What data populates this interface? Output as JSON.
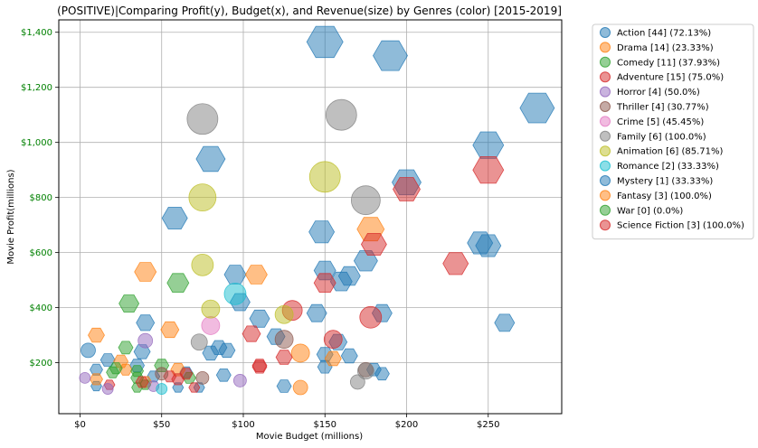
{
  "chart_data": {
    "type": "scatter",
    "title": "(POSITIVE)|Comparing Profit(y), Budget(x), and Revenue(size) by Genres (color) [2015-2019]",
    "xlabel": "Movie Budget (millions)",
    "ylabel": "Movie Profit(millions)",
    "xlim": [
      -13,
      295
    ],
    "ylim": [
      15,
      1445
    ],
    "x_ticks": [
      0,
      50,
      100,
      150,
      200,
      250
    ],
    "x_tick_labels": [
      "$0",
      "$50",
      "$100",
      "$150",
      "$200",
      "$250"
    ],
    "y_ticks": [
      200,
      400,
      600,
      800,
      1000,
      1200,
      1400
    ],
    "y_tick_labels": [
      "$200",
      "$400",
      "$600",
      "$800",
      "$1,000",
      "$1,200",
      "$1,400"
    ],
    "y_tick_color": "#008000",
    "grid": true,
    "legend_position": "outside-right",
    "colors": {
      "blue": "#1f77b4",
      "orange": "#ff7f0e",
      "green": "#2ca02c",
      "red": "#d62728",
      "purple": "#9467bd",
      "brown": "#8c564b",
      "pink": "#e377c2",
      "gray": "#7f7f7f",
      "olive": "#bcbd22",
      "cyan": "#17becf"
    },
    "legend": [
      {
        "label": "Action [44] (72.13%)",
        "color": "#1f77b4"
      },
      {
        "label": "Drama [14] (23.33%)",
        "color": "#ff7f0e"
      },
      {
        "label": "Comedy [11] (37.93%)",
        "color": "#2ca02c"
      },
      {
        "label": "Adventure [15] (75.0%)",
        "color": "#d62728"
      },
      {
        "label": "Horror [4] (50.0%)",
        "color": "#9467bd"
      },
      {
        "label": "Thriller [4] (30.77%)",
        "color": "#8c564b"
      },
      {
        "label": "Crime [5] (45.45%)",
        "color": "#e377c2"
      },
      {
        "label": "Family [6] (100.0%)",
        "color": "#7f7f7f"
      },
      {
        "label": "Animation [6] (85.71%)",
        "color": "#bcbd22"
      },
      {
        "label": "Romance [2] (33.33%)",
        "color": "#17becf"
      },
      {
        "label": "Mystery [1] (33.33%)",
        "color": "#1f77b4"
      },
      {
        "label": "Fantasy [3] (100.0%)",
        "color": "#ff7f0e"
      },
      {
        "label": "War [0] (0.0%)",
        "color": "#2ca02c"
      },
      {
        "label": "Science Fiction [3] (100.0%)",
        "color": "#d62728"
      }
    ],
    "points": [
      {
        "x": 150,
        "y": 1365,
        "s": 20,
        "c": "#1f77b4",
        "m": "hex"
      },
      {
        "x": 190,
        "y": 1315,
        "s": 19,
        "c": "#1f77b4",
        "m": "hex"
      },
      {
        "x": 280,
        "y": 1125,
        "s": 19,
        "c": "#1f77b4",
        "m": "hex"
      },
      {
        "x": 250,
        "y": 990,
        "s": 17,
        "c": "#1f77b4",
        "m": "hex"
      },
      {
        "x": 80,
        "y": 940,
        "s": 16,
        "c": "#1f77b4",
        "m": "hex"
      },
      {
        "x": 200,
        "y": 855,
        "s": 16,
        "c": "#1f77b4",
        "m": "hex"
      },
      {
        "x": 58,
        "y": 725,
        "s": 14,
        "c": "#1f77b4",
        "m": "hex"
      },
      {
        "x": 148,
        "y": 675,
        "s": 14,
        "c": "#1f77b4",
        "m": "hex"
      },
      {
        "x": 245,
        "y": 635,
        "s": 14,
        "c": "#1f77b4",
        "m": "hex"
      },
      {
        "x": 250,
        "y": 625,
        "s": 14,
        "c": "#1f77b4",
        "m": "hex"
      },
      {
        "x": 175,
        "y": 570,
        "s": 13,
        "c": "#1f77b4",
        "m": "hex"
      },
      {
        "x": 150,
        "y": 535,
        "s": 12,
        "c": "#1f77b4",
        "m": "hex"
      },
      {
        "x": 95,
        "y": 520,
        "s": 12,
        "c": "#1f77b4",
        "m": "hex"
      },
      {
        "x": 165,
        "y": 515,
        "s": 12,
        "c": "#1f77b4",
        "m": "hex"
      },
      {
        "x": 160,
        "y": 495,
        "s": 12,
        "c": "#1f77b4",
        "m": "hex"
      },
      {
        "x": 98,
        "y": 420,
        "s": 11,
        "c": "#1f77b4",
        "m": "hex"
      },
      {
        "x": 185,
        "y": 380,
        "s": 11,
        "c": "#1f77b4",
        "m": "hex"
      },
      {
        "x": 145,
        "y": 380,
        "s": 11,
        "c": "#1f77b4",
        "m": "hex"
      },
      {
        "x": 110,
        "y": 360,
        "s": 11,
        "c": "#1f77b4",
        "m": "hex"
      },
      {
        "x": 260,
        "y": 345,
        "s": 11,
        "c": "#1f77b4",
        "m": "hex"
      },
      {
        "x": 40,
        "y": 345,
        "s": 10,
        "c": "#1f77b4",
        "m": "hex"
      },
      {
        "x": 120,
        "y": 295,
        "s": 10,
        "c": "#1f77b4",
        "m": "hex"
      },
      {
        "x": 158,
        "y": 275,
        "s": 10,
        "c": "#1f77b4",
        "m": "hex"
      },
      {
        "x": 85,
        "y": 255,
        "s": 9,
        "c": "#1f77b4",
        "m": "hex"
      },
      {
        "x": 90,
        "y": 245,
        "s": 9,
        "c": "#1f77b4",
        "m": "hex"
      },
      {
        "x": 38,
        "y": 240,
        "s": 9,
        "c": "#1f77b4",
        "m": "hex"
      },
      {
        "x": 80,
        "y": 235,
        "s": 9,
        "c": "#1f77b4",
        "m": "hex"
      },
      {
        "x": 165,
        "y": 225,
        "s": 9,
        "c": "#1f77b4",
        "m": "hex"
      },
      {
        "x": 150,
        "y": 230,
        "s": 9,
        "c": "#1f77b4",
        "m": "hex"
      },
      {
        "x": 17,
        "y": 210,
        "s": 8,
        "c": "#1f77b4",
        "m": "hex"
      },
      {
        "x": 35,
        "y": 190,
        "s": 8,
        "c": "#1f77b4",
        "m": "hex"
      },
      {
        "x": 150,
        "y": 185,
        "s": 8,
        "c": "#1f77b4",
        "m": "hex"
      },
      {
        "x": 180,
        "y": 175,
        "s": 8,
        "c": "#1f77b4",
        "m": "hex"
      },
      {
        "x": 10,
        "y": 175,
        "s": 7,
        "c": "#1f77b4",
        "m": "hex"
      },
      {
        "x": 65,
        "y": 165,
        "s": 7,
        "c": "#1f77b4",
        "m": "hex"
      },
      {
        "x": 185,
        "y": 160,
        "s": 8,
        "c": "#1f77b4",
        "m": "hex"
      },
      {
        "x": 88,
        "y": 155,
        "s": 8,
        "c": "#1f77b4",
        "m": "hex"
      },
      {
        "x": 45,
        "y": 150,
        "s": 7,
        "c": "#1f77b4",
        "m": "hex"
      },
      {
        "x": 125,
        "y": 115,
        "s": 8,
        "c": "#1f77b4",
        "m": "hex"
      },
      {
        "x": 10,
        "y": 115,
        "s": 6,
        "c": "#1f77b4",
        "m": "hex"
      },
      {
        "x": 60,
        "y": 110,
        "s": 6,
        "c": "#1f77b4",
        "m": "hex"
      },
      {
        "x": 73,
        "y": 110,
        "s": 6,
        "c": "#1f77b4",
        "m": "hex"
      },
      {
        "x": 5,
        "y": 245,
        "s": 8,
        "c": "#1f77b4",
        "m": "circle"
      },
      {
        "x": 178,
        "y": 685,
        "s": 15,
        "c": "#ff7f0e",
        "m": "hex"
      },
      {
        "x": 40,
        "y": 530,
        "s": 12,
        "c": "#ff7f0e",
        "m": "hex"
      },
      {
        "x": 108,
        "y": 520,
        "s": 12,
        "c": "#ff7f0e",
        "m": "hex"
      },
      {
        "x": 55,
        "y": 320,
        "s": 10,
        "c": "#ff7f0e",
        "m": "hex"
      },
      {
        "x": 10,
        "y": 300,
        "s": 9,
        "c": "#ff7f0e",
        "m": "hex"
      },
      {
        "x": 135,
        "y": 235,
        "s": 10,
        "c": "#ff7f0e",
        "m": "circle"
      },
      {
        "x": 25,
        "y": 205,
        "s": 8,
        "c": "#ff7f0e",
        "m": "hex"
      },
      {
        "x": 155,
        "y": 215,
        "s": 9,
        "c": "#ff7f0e",
        "m": "hex"
      },
      {
        "x": 60,
        "y": 175,
        "s": 8,
        "c": "#ff7f0e",
        "m": "hex"
      },
      {
        "x": 28,
        "y": 175,
        "s": 7,
        "c": "#ff7f0e",
        "m": "hex"
      },
      {
        "x": 10,
        "y": 140,
        "s": 7,
        "c": "#ff7f0e",
        "m": "hex"
      },
      {
        "x": 40,
        "y": 130,
        "s": 7,
        "c": "#ff7f0e",
        "m": "hex"
      },
      {
        "x": 135,
        "y": 110,
        "s": 8,
        "c": "#ff7f0e",
        "m": "circle"
      },
      {
        "x": 60,
        "y": 490,
        "s": 12,
        "c": "#2ca02c",
        "m": "hex"
      },
      {
        "x": 30,
        "y": 415,
        "s": 11,
        "c": "#2ca02c",
        "m": "hex"
      },
      {
        "x": 28,
        "y": 255,
        "s": 8,
        "c": "#2ca02c",
        "m": "hex"
      },
      {
        "x": 50,
        "y": 190,
        "s": 8,
        "c": "#2ca02c",
        "m": "hex"
      },
      {
        "x": 22,
        "y": 180,
        "s": 7,
        "c": "#2ca02c",
        "m": "hex"
      },
      {
        "x": 20,
        "y": 165,
        "s": 7,
        "c": "#2ca02c",
        "m": "hex"
      },
      {
        "x": 35,
        "y": 170,
        "s": 7,
        "c": "#2ca02c",
        "m": "hex"
      },
      {
        "x": 35,
        "y": 145,
        "s": 7,
        "c": "#2ca02c",
        "m": "hex"
      },
      {
        "x": 67,
        "y": 145,
        "s": 7,
        "c": "#2ca02c",
        "m": "hex"
      },
      {
        "x": 40,
        "y": 120,
        "s": 6,
        "c": "#2ca02c",
        "m": "hex"
      },
      {
        "x": 35,
        "y": 110,
        "s": 6,
        "c": "#2ca02c",
        "m": "hex"
      },
      {
        "x": 200,
        "y": 830,
        "s": 15,
        "c": "#d62728",
        "m": "hex"
      },
      {
        "x": 250,
        "y": 900,
        "s": 17,
        "c": "#d62728",
        "m": "hex"
      },
      {
        "x": 180,
        "y": 630,
        "s": 14,
        "c": "#d62728",
        "m": "hex"
      },
      {
        "x": 230,
        "y": 560,
        "s": 14,
        "c": "#d62728",
        "m": "hex"
      },
      {
        "x": 150,
        "y": 490,
        "s": 12,
        "c": "#d62728",
        "m": "hex"
      },
      {
        "x": 105,
        "y": 305,
        "s": 10,
        "c": "#d62728",
        "m": "hex"
      },
      {
        "x": 125,
        "y": 220,
        "s": 9,
        "c": "#d62728",
        "m": "hex"
      },
      {
        "x": 110,
        "y": 190,
        "s": 8,
        "c": "#d62728",
        "m": "hex"
      },
      {
        "x": 110,
        "y": 185,
        "s": 8,
        "c": "#d62728",
        "m": "hex"
      },
      {
        "x": 65,
        "y": 160,
        "s": 7,
        "c": "#d62728",
        "m": "hex"
      },
      {
        "x": 55,
        "y": 150,
        "s": 7,
        "c": "#d62728",
        "m": "hex"
      },
      {
        "x": 60,
        "y": 140,
        "s": 7,
        "c": "#d62728",
        "m": "hex"
      },
      {
        "x": 38,
        "y": 130,
        "s": 7,
        "c": "#d62728",
        "m": "hex"
      },
      {
        "x": 18,
        "y": 120,
        "s": 6,
        "c": "#d62728",
        "m": "hex"
      },
      {
        "x": 70,
        "y": 110,
        "s": 6,
        "c": "#d62728",
        "m": "hex"
      },
      {
        "x": 178,
        "y": 365,
        "s": 12,
        "c": "#d62728",
        "m": "circle"
      },
      {
        "x": 130,
        "y": 390,
        "s": 11,
        "c": "#d62728",
        "m": "circle"
      },
      {
        "x": 155,
        "y": 285,
        "s": 10,
        "c": "#d62728",
        "m": "circle"
      },
      {
        "x": 40,
        "y": 280,
        "s": 8,
        "c": "#9467bd",
        "m": "circle"
      },
      {
        "x": 98,
        "y": 135,
        "s": 7,
        "c": "#9467bd",
        "m": "circle"
      },
      {
        "x": 3,
        "y": 145,
        "s": 6,
        "c": "#9467bd",
        "m": "circle"
      },
      {
        "x": 45,
        "y": 115,
        "s": 6,
        "c": "#9467bd",
        "m": "circle"
      },
      {
        "x": 17,
        "y": 105,
        "s": 6,
        "c": "#9467bd",
        "m": "circle"
      },
      {
        "x": 125,
        "y": 285,
        "s": 10,
        "c": "#8c564b",
        "m": "circle"
      },
      {
        "x": 75,
        "y": 145,
        "s": 7,
        "c": "#8c564b",
        "m": "circle"
      },
      {
        "x": 50,
        "y": 160,
        "s": 7,
        "c": "#8c564b",
        "m": "circle"
      },
      {
        "x": 175,
        "y": 175,
        "s": 8,
        "c": "#8c564b",
        "m": "circle"
      },
      {
        "x": 80,
        "y": 335,
        "s": 10,
        "c": "#e377c2",
        "m": "circle"
      },
      {
        "x": 75,
        "y": 1085,
        "s": 17,
        "c": "#7f7f7f",
        "m": "circle"
      },
      {
        "x": 160,
        "y": 1100,
        "s": 17,
        "c": "#7f7f7f",
        "m": "circle"
      },
      {
        "x": 175,
        "y": 790,
        "s": 16,
        "c": "#7f7f7f",
        "m": "circle"
      },
      {
        "x": 73,
        "y": 275,
        "s": 9,
        "c": "#7f7f7f",
        "m": "circle"
      },
      {
        "x": 175,
        "y": 170,
        "s": 9,
        "c": "#7f7f7f",
        "m": "circle"
      },
      {
        "x": 170,
        "y": 130,
        "s": 8,
        "c": "#7f7f7f",
        "m": "circle"
      },
      {
        "x": 150,
        "y": 875,
        "s": 17,
        "c": "#bcbd22",
        "m": "circle"
      },
      {
        "x": 75,
        "y": 800,
        "s": 15,
        "c": "#bcbd22",
        "m": "circle"
      },
      {
        "x": 75,
        "y": 555,
        "s": 12,
        "c": "#bcbd22",
        "m": "circle"
      },
      {
        "x": 80,
        "y": 395,
        "s": 10,
        "c": "#bcbd22",
        "m": "circle"
      },
      {
        "x": 125,
        "y": 375,
        "s": 10,
        "c": "#bcbd22",
        "m": "circle"
      },
      {
        "x": 95,
        "y": 450,
        "s": 12,
        "c": "#17becf",
        "m": "circle"
      },
      {
        "x": 50,
        "y": 105,
        "s": 6,
        "c": "#17becf",
        "m": "circle"
      }
    ]
  }
}
